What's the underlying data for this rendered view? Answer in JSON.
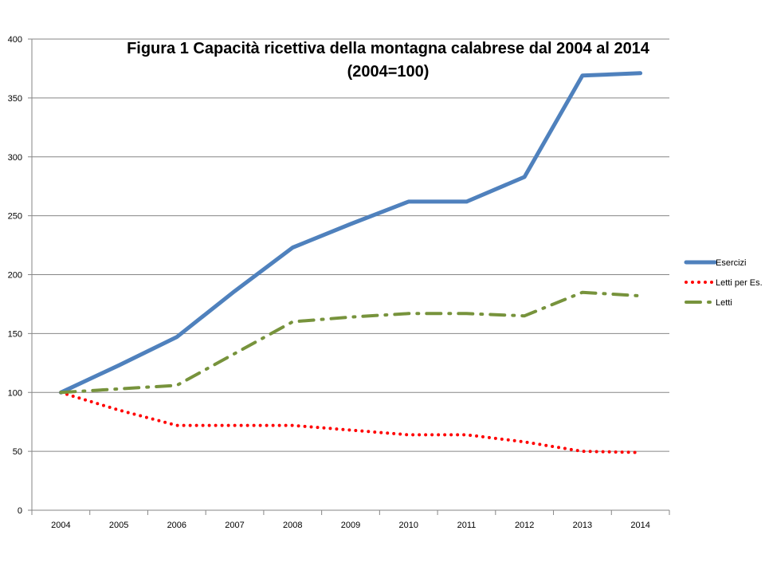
{
  "chart_data": {
    "type": "line",
    "title": "Figura 1  Capacità ricettiva della montagna calabrese dal 2004 al 2014",
    "subtitle": "(2004=100)",
    "xlabel": "",
    "ylabel": "",
    "categories": [
      "2004",
      "2005",
      "2006",
      "2007",
      "2008",
      "2009",
      "2010",
      "2011",
      "2012",
      "2013",
      "2014"
    ],
    "ylim": [
      0,
      400
    ],
    "yticks": [
      0,
      50,
      100,
      150,
      200,
      250,
      300,
      350,
      400
    ],
    "grid": "horizontal",
    "legend_position": "right",
    "series": [
      {
        "name": "Esercizi",
        "color": "#4F81BD",
        "style": "solid",
        "values": [
          100,
          123,
          147,
          186,
          223,
          243,
          262,
          262,
          283,
          369,
          371
        ]
      },
      {
        "name": "Letti per Es.",
        "color": "#FF0000",
        "style": "dotted",
        "values": [
          100,
          85,
          72,
          72,
          72,
          68,
          64,
          64,
          58,
          50,
          49
        ]
      },
      {
        "name": "Letti",
        "color": "#77933C",
        "style": "dash-dot",
        "values": [
          100,
          103,
          106,
          133,
          160,
          164,
          167,
          167,
          165,
          185,
          182
        ]
      }
    ]
  }
}
